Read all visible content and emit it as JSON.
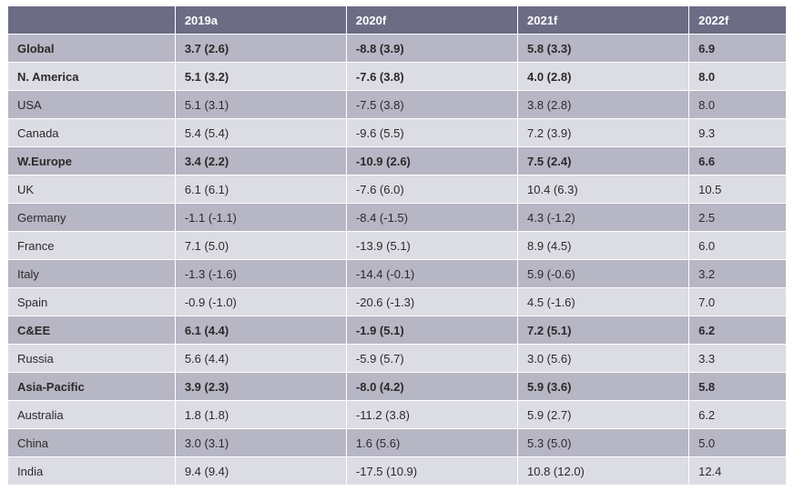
{
  "table": {
    "type": "table",
    "header_label": "",
    "columns": [
      "2019a",
      "2020f",
      "2021f",
      "2022f"
    ],
    "header_bg": "#6c6c85",
    "header_text_color": "#ffffff",
    "band_dark": "#b7b6c4",
    "band_light": "#dcdce4",
    "border_color": "#ffffff",
    "text_color": "#2a2a2a",
    "font_size": 13,
    "bold_font_weight": 700,
    "rows": [
      {
        "label": "Global",
        "values": [
          "3.7 (2.6)",
          "-8.8 (3.9)",
          "5.8 (3.3)",
          "6.9"
        ],
        "bold": true
      },
      {
        "label": "N. America",
        "values": [
          "5.1 (3.2)",
          "-7.6 (3.8)",
          "4.0 (2.8)",
          "8.0"
        ],
        "bold": true
      },
      {
        "label": "USA",
        "values": [
          "5.1 (3.1)",
          "-7.5 (3.8)",
          "3.8 (2.8)",
          "8.0"
        ],
        "bold": false
      },
      {
        "label": "Canada",
        "values": [
          "5.4 (5.4)",
          "-9.6 (5.5)",
          "7.2 (3.9)",
          "9.3"
        ],
        "bold": false
      },
      {
        "label": "W.Europe",
        "values": [
          "3.4 (2.2)",
          "-10.9 (2.6)",
          "7.5 (2.4)",
          "6.6"
        ],
        "bold": true
      },
      {
        "label": "UK",
        "values": [
          "6.1 (6.1)",
          "-7.6 (6.0)",
          "10.4 (6.3)",
          "10.5"
        ],
        "bold": false
      },
      {
        "label": "Germany",
        "values": [
          "-1.1 (-1.1)",
          "-8.4 (-1.5)",
          "4.3 (-1.2)",
          "2.5"
        ],
        "bold": false
      },
      {
        "label": "France",
        "values": [
          "7.1 (5.0)",
          "-13.9 (5.1)",
          "8.9 (4.5)",
          "6.0"
        ],
        "bold": false
      },
      {
        "label": "Italy",
        "values": [
          "-1.3 (-1.6)",
          "-14.4 (-0.1)",
          "5.9 (-0.6)",
          "3.2"
        ],
        "bold": false
      },
      {
        "label": "Spain",
        "values": [
          "-0.9 (-1.0)",
          "-20.6 (-1.3)",
          "4.5 (-1.6)",
          "7.0"
        ],
        "bold": false
      },
      {
        "label": "C&EE",
        "values": [
          "6.1 (4.4)",
          "-1.9 (5.1)",
          "7.2 (5.1)",
          "6.2"
        ],
        "bold": true
      },
      {
        "label": "Russia",
        "values": [
          "5.6 (4.4)",
          "-5.9 (5.7)",
          "3.0 (5.6)",
          "3.3"
        ],
        "bold": false
      },
      {
        "label": "Asia-Pacific",
        "values": [
          "3.9 (2.3)",
          "-8.0 (4.2)",
          "5.9 (3.6)",
          "5.8"
        ],
        "bold": true
      },
      {
        "label": "Australia",
        "values": [
          "1.8 (1.8)",
          "-11.2 (3.8)",
          "5.9 (2.7)",
          "6.2"
        ],
        "bold": false
      },
      {
        "label": "China",
        "values": [
          "3.0 (3.1)",
          "1.6 (5.6)",
          "5.3 (5.0)",
          "5.0"
        ],
        "bold": false
      },
      {
        "label": "India",
        "values": [
          "9.4 (9.4)",
          "-17.5 (10.9)",
          "10.8 (12.0)",
          "12.4"
        ],
        "bold": false
      }
    ]
  }
}
